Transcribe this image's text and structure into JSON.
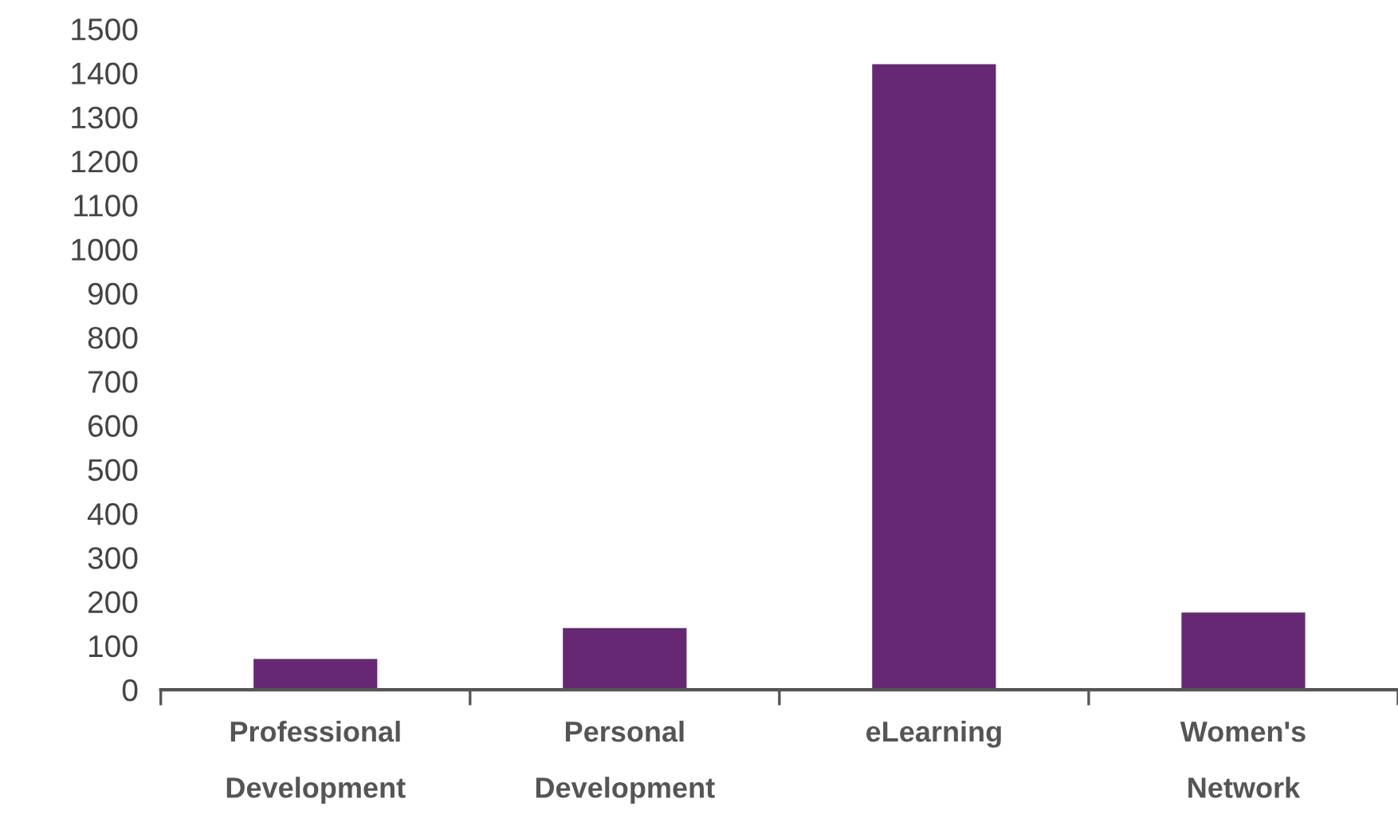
{
  "chart_data": {
    "type": "bar",
    "categories": [
      "Professional\nDevelopment",
      "Personal\nDevelopment",
      "eLearning",
      "Women's\nNetwork"
    ],
    "values": [
      70,
      140,
      1420,
      175
    ],
    "color": "#662873",
    "ylim": [
      0,
      1500
    ],
    "yticks": [
      0,
      100,
      200,
      300,
      400,
      500,
      600,
      700,
      800,
      900,
      1000,
      1100,
      1200,
      1300,
      1400,
      1500
    ],
    "grid": false
  }
}
